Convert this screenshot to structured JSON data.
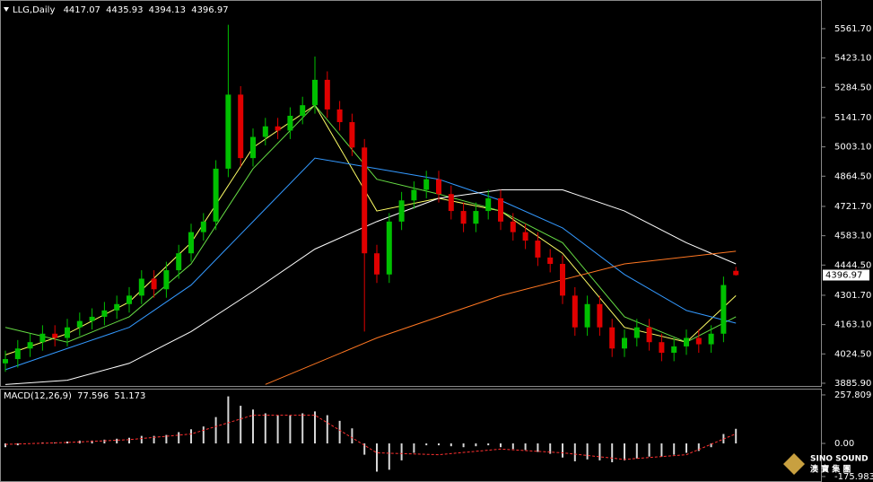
{
  "chart_data": [
    {
      "type": "candlestick",
      "title": "LLG,Daily",
      "up_color": "#00c000",
      "down_color": "#e00000",
      "open": [
        3980,
        4000,
        4050,
        4080,
        4120,
        4100,
        4150,
        4180,
        4200,
        4230,
        4260,
        4300,
        4380,
        4330,
        4420,
        4500,
        4600,
        4650,
        4900,
        5250,
        4950,
        5050,
        5100,
        5080,
        5150,
        5200,
        5320,
        5180,
        5120,
        5000,
        4500,
        4400,
        4650,
        4750,
        4800,
        4850,
        4780,
        4700,
        4640,
        4700,
        4760,
        4650,
        4600,
        4560,
        4480,
        4450,
        4300,
        4150,
        4260,
        4150,
        4050,
        4100,
        4150,
        4080,
        4030,
        4060,
        4100,
        4070,
        4120,
        4417.07
      ],
      "high": [
        4040,
        4090,
        4120,
        4160,
        4160,
        4190,
        4220,
        4240,
        4270,
        4300,
        4340,
        4420,
        4420,
        4460,
        4540,
        4640,
        4690,
        4940,
        5580,
        5290,
        5090,
        5140,
        5140,
        5190,
        5240,
        5430,
        5360,
        5220,
        5160,
        5040,
        4540,
        4690,
        4790,
        4840,
        4890,
        4890,
        4820,
        4740,
        4740,
        4800,
        4800,
        4690,
        4640,
        4600,
        4520,
        4490,
        4340,
        4300,
        4300,
        4190,
        4140,
        4190,
        4190,
        4120,
        4100,
        4140,
        4140,
        4160,
        4390,
        4435.93
      ],
      "low": [
        3940,
        3960,
        4010,
        4040,
        4060,
        4060,
        4110,
        4140,
        4160,
        4190,
        4220,
        4260,
        4290,
        4290,
        4380,
        4460,
        4560,
        4610,
        4860,
        4910,
        4910,
        5010,
        5040,
        5040,
        5110,
        5160,
        5140,
        5080,
        4960,
        4130,
        4360,
        4360,
        4610,
        4710,
        4760,
        4740,
        4660,
        4600,
        4600,
        4660,
        4610,
        4560,
        4520,
        4440,
        4410,
        4260,
        4110,
        4110,
        4110,
        4010,
        4010,
        4060,
        4040,
        3990,
        3990,
        4020,
        4030,
        4030,
        4080,
        4394.13
      ],
      "close": [
        4000,
        4050,
        4080,
        4120,
        4100,
        4150,
        4180,
        4200,
        4230,
        4260,
        4300,
        4380,
        4330,
        4420,
        4500,
        4600,
        4650,
        4900,
        5250,
        4950,
        5050,
        5100,
        5080,
        5150,
        5200,
        5320,
        5180,
        5120,
        5000,
        4500,
        4400,
        4650,
        4750,
        4800,
        4850,
        4780,
        4700,
        4640,
        4700,
        4760,
        4650,
        4600,
        4560,
        4480,
        4450,
        4300,
        4150,
        4260,
        4150,
        4050,
        4100,
        4150,
        4080,
        4030,
        4060,
        4100,
        4070,
        4120,
        4350,
        4396.97
      ],
      "series": [
        {
          "color": "#ffff66",
          "x": [
            0,
            5,
            10,
            15,
            20,
            25,
            30,
            35,
            40,
            45,
            50,
            55,
            59
          ],
          "values": [
            4020,
            4120,
            4270,
            4550,
            5000,
            5200,
            4700,
            4760,
            4700,
            4500,
            4150,
            4080,
            4300
          ]
        },
        {
          "color": "#66dd44",
          "x": [
            0,
            5,
            10,
            15,
            20,
            25,
            30,
            35,
            40,
            45,
            50,
            55,
            59
          ],
          "values": [
            4150,
            4080,
            4200,
            4450,
            4900,
            5200,
            4850,
            4780,
            4700,
            4550,
            4200,
            4080,
            4200
          ]
        },
        {
          "color": "#3399ff",
          "x": [
            0,
            5,
            10,
            15,
            20,
            25,
            30,
            35,
            40,
            45,
            50,
            55,
            59
          ],
          "values": [
            3950,
            4050,
            4150,
            4350,
            4650,
            4950,
            4900,
            4850,
            4750,
            4620,
            4400,
            4230,
            4170
          ]
        },
        {
          "color": "#ffffff",
          "x": [
            0,
            5,
            10,
            15,
            20,
            25,
            30,
            35,
            40,
            45,
            50,
            55,
            59
          ],
          "values": [
            3880,
            3900,
            3980,
            4130,
            4320,
            4520,
            4650,
            4760,
            4800,
            4800,
            4700,
            4550,
            4450
          ]
        },
        {
          "color": "#ff7722",
          "x": [
            21,
            30,
            40,
            50,
            59
          ],
          "values": [
            3880,
            4100,
            4300,
            4450,
            4510
          ]
        }
      ],
      "ylim": [
        3873,
        5676
      ],
      "yticks": [
        {
          "value": 5561.7,
          "label": "5561.70"
        },
        {
          "value": 5423.1,
          "label": "5423.10"
        },
        {
          "value": 5284.5,
          "label": "5284.50"
        },
        {
          "value": 5141.7,
          "label": "5141.70"
        },
        {
          "value": 5003.1,
          "label": "5003.10"
        },
        {
          "value": 4864.5,
          "label": "4864.50"
        },
        {
          "value": 4721.7,
          "label": "4721.70"
        },
        {
          "value": 4583.1,
          "label": "4583.10"
        },
        {
          "value": 4444.5,
          "label": "4444.50"
        },
        {
          "value": 4301.7,
          "label": "4301.70"
        },
        {
          "value": 4163.1,
          "label": "4163.10"
        },
        {
          "value": 4024.5,
          "label": "4024.50"
        },
        {
          "value": 3885.9,
          "label": "3885.90"
        }
      ]
    },
    {
      "type": "macd",
      "title": "MACD(12,26,9)",
      "color": "#d8d8d8",
      "values": [
        -20,
        -10,
        0,
        5,
        5,
        10,
        15,
        15,
        20,
        25,
        30,
        40,
        40,
        45,
        60,
        75,
        90,
        140,
        250,
        200,
        180,
        160,
        150,
        150,
        160,
        170,
        150,
        120,
        80,
        -60,
        -150,
        -140,
        -90,
        -50,
        -10,
        -10,
        -15,
        -20,
        -15,
        -10,
        -20,
        -30,
        -35,
        -45,
        -55,
        -75,
        -95,
        -85,
        -90,
        -100,
        -90,
        -80,
        -70,
        -70,
        -60,
        -50,
        -40,
        -20,
        50,
        77.596
      ],
      "signal": {
        "color": "#ff3030",
        "x": [
          0,
          5,
          10,
          15,
          20,
          25,
          30,
          35,
          40,
          45,
          50,
          55,
          59
        ],
        "values": [
          -5,
          5,
          20,
          50,
          150,
          150,
          -50,
          -60,
          -30,
          -50,
          -85,
          -60,
          51.173
        ]
      },
      "ylim": [
        -205,
        291
      ],
      "yticks": [
        257.809,
        {
          "value": 0,
          "label": "0.00"
        },
        -175.983
      ]
    }
  ],
  "watermark": {
    "brand": "SINO SOUND",
    "chinese": "澳 寶 集 團"
  }
}
